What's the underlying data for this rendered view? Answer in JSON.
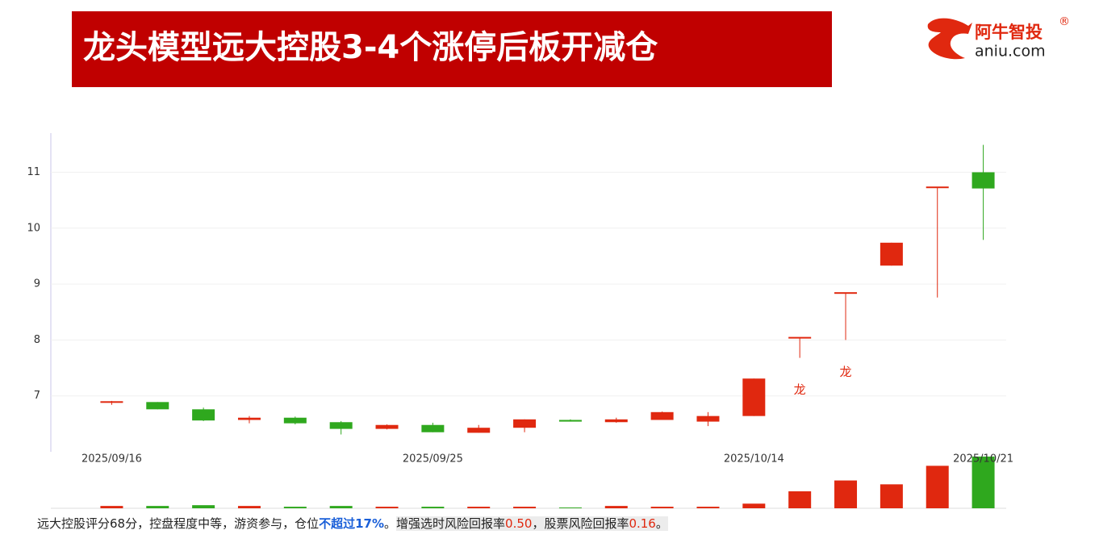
{
  "header": {
    "title": "龙头模型远大控股3-4个涨停后板开减仓",
    "logo_name": "阿牛智投",
    "logo_mark": "®",
    "logo_site": "aniu.com"
  },
  "chart_data": {
    "type": "candlestick",
    "categories": [
      "2025/09/16",
      null,
      null,
      null,
      null,
      null,
      null,
      "2025/09/25",
      null,
      null,
      null,
      null,
      null,
      null,
      "2025/10/14",
      null,
      null,
      null,
      null,
      "2025/10/21"
    ],
    "open": [
      6.87,
      6.89,
      6.76,
      6.57,
      6.61,
      6.53,
      6.41,
      6.48,
      6.34,
      6.43,
      6.57,
      6.53,
      6.57,
      6.54,
      6.64,
      8.04,
      8.84,
      9.33,
      10.73,
      11.0
    ],
    "high": [
      6.91,
      6.89,
      6.79,
      6.64,
      6.63,
      6.55,
      6.49,
      6.52,
      6.48,
      6.58,
      6.58,
      6.61,
      6.72,
      6.71,
      7.31,
      8.04,
      8.84,
      9.74,
      10.73,
      11.49
    ],
    "low": [
      6.84,
      6.76,
      6.55,
      6.51,
      6.49,
      6.31,
      6.4,
      6.35,
      6.34,
      6.35,
      6.54,
      6.52,
      6.57,
      6.46,
      6.64,
      7.68,
      8.0,
      9.33,
      8.76,
      9.79
    ],
    "close": [
      6.89,
      6.76,
      6.56,
      6.61,
      6.51,
      6.41,
      6.48,
      6.35,
      6.43,
      6.58,
      6.54,
      6.58,
      6.71,
      6.64,
      7.31,
      8.04,
      8.84,
      9.74,
      10.73,
      10.71
    ],
    "markers": [
      null,
      null,
      null,
      null,
      null,
      null,
      null,
      null,
      null,
      null,
      null,
      null,
      null,
      null,
      null,
      "龙",
      "龙",
      null,
      null,
      null
    ],
    "volume": [
      3,
      3,
      4,
      3,
      2,
      3,
      2,
      2,
      2,
      2,
      1,
      3,
      2,
      2,
      6,
      22,
      36,
      31,
      55,
      67
    ],
    "volume_ylim": [
      0,
      70
    ],
    "up_color": "#e0280f",
    "down_color": "#2fa81e",
    "ylim": [
      6.0,
      11.7
    ],
    "yticks": [
      7,
      8,
      9,
      10,
      11
    ],
    "grid": true
  },
  "footer": {
    "text1": "远大控股评分68分，控盘程度中等，游资参与，仓位",
    "highlight": "不超过17%",
    "text2": "。",
    "text3": "增强选时风险回报率",
    "value1": "0.50",
    "text4": "，股票风险回报率",
    "value2": "0.16",
    "text5": "。"
  }
}
